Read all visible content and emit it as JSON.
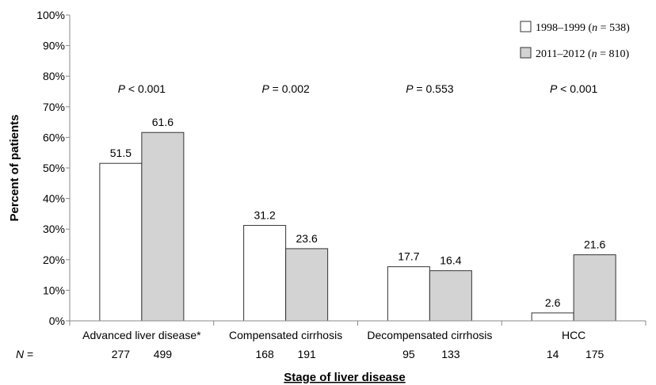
{
  "chart_data": {
    "type": "bar",
    "ylabel": "Percent of patients",
    "xlabel": "Stage of liver disease",
    "ylim": [
      0,
      100
    ],
    "ytick_step": 10,
    "ytick_format": "{v}%",
    "grid": false,
    "legend_position": "top-right",
    "categories": [
      "Advanced liver disease*",
      "Compensated cirrhosis",
      "Decompensated cirrhosis",
      "HCC"
    ],
    "series": [
      {
        "name": "1998–1999 (n = 538)",
        "legend_prefix": "1998–1999 (",
        "legend_n": "n",
        "legend_suffix": " = 538)",
        "color": "#ffffff",
        "values": [
          51.5,
          31.2,
          17.7,
          2.6
        ],
        "labels": [
          "51.5",
          "31.2",
          "17.7",
          "2.6"
        ],
        "N": [
          "277",
          "168",
          "95",
          "14"
        ]
      },
      {
        "name": "2011–2012 (n = 810)",
        "legend_prefix": "2011–2012 (",
        "legend_n": "n",
        "legend_suffix": " = 810)",
        "color": "#d3d3d3",
        "values": [
          61.6,
          23.6,
          16.4,
          21.6
        ],
        "labels": [
          "61.6",
          "23.6",
          "16.4",
          "21.6"
        ],
        "N": [
          "499",
          "191",
          "133",
          "175"
        ]
      }
    ],
    "p_values": [
      {
        "p": "P",
        "rest": " < 0.001"
      },
      {
        "p": "P",
        "rest": " = 0.002"
      },
      {
        "p": "P",
        "rest": " = 0.553"
      },
      {
        "p": "P",
        "rest": " < 0.001"
      }
    ],
    "n_row_label": "N",
    "n_row_suffix": " ="
  }
}
